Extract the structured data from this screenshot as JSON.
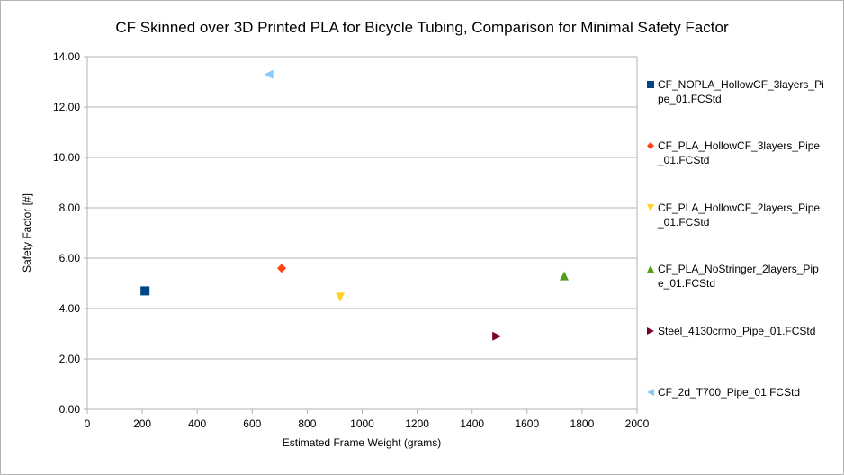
{
  "chart_data": {
    "type": "scatter",
    "title": "CF Skinned over 3D Printed PLA for Bicycle Tubing, Comparison for Minimal Safety Factor",
    "xlabel": "Estimated Frame Weight (grams)",
    "ylabel": "Safety Factor [#]",
    "xlim": [
      0,
      2000
    ],
    "ylim": [
      0,
      14
    ],
    "x_ticks": [
      "0",
      "200",
      "400",
      "600",
      "800",
      "1000",
      "1200",
      "1400",
      "1600",
      "1800",
      "2000"
    ],
    "y_ticks": [
      "0.00",
      "2.00",
      "4.00",
      "6.00",
      "8.00",
      "10.00",
      "12.00",
      "14.00"
    ],
    "grid": "horizontal",
    "legend_position": "right",
    "series": [
      {
        "name": "CF_NOPLA_HollowCF_3layers_Pipe_01.FCStd",
        "marker": "square",
        "color": "#004586",
        "x": 210,
        "y": 4.7
      },
      {
        "name": "CF_PLA_HollowCF_3layers_Pipe_01.FCStd",
        "marker": "diamond",
        "color": "#ff420e",
        "x": 707,
        "y": 5.6
      },
      {
        "name": "CF_PLA_HollowCF_2layers_Pipe_01.FCStd",
        "marker": "triangle-down",
        "color": "#ffd320",
        "x": 920,
        "y": 4.45
      },
      {
        "name": "CF_PLA_NoStringer_2layers_Pipe_01.FCStd",
        "marker": "triangle-up",
        "color": "#579d1c",
        "x": 1735,
        "y": 5.3
      },
      {
        "name": "Steel_4130crmo_Pipe_01.FCStd",
        "marker": "triangle-right",
        "color": "#7e0021",
        "x": 1490,
        "y": 2.9
      },
      {
        "name": "CF_2d_T700_Pipe_01.FCStd",
        "marker": "triangle-left",
        "color": "#83caff",
        "x": 660,
        "y": 13.3
      }
    ]
  }
}
